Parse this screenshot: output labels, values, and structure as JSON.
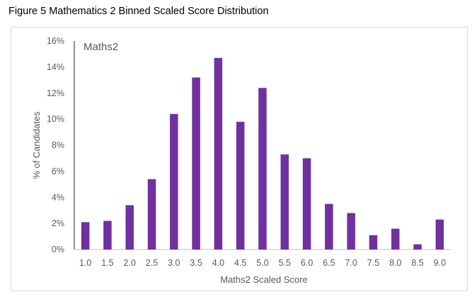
{
  "figure": {
    "title": "Figure 5 Mathematics 2 Binned Scaled Score Distribution"
  },
  "chart_data": {
    "type": "bar",
    "title": "Maths2",
    "xlabel": "Maths2 Scaled Score",
    "ylabel": "% of Candidates",
    "categories": [
      "1.0",
      "1.5",
      "2.0",
      "2.5",
      "3.0",
      "3.5",
      "4.0",
      "4.5",
      "5.0",
      "5.5",
      "6.0",
      "6.5",
      "7.0",
      "7.5",
      "8.0",
      "8.5",
      "9.0"
    ],
    "values": [
      2.1,
      2.2,
      3.4,
      5.4,
      10.4,
      13.2,
      14.7,
      9.8,
      12.4,
      7.3,
      7.0,
      3.5,
      2.8,
      1.1,
      1.6,
      0.4,
      2.3
    ],
    "ylim": [
      0,
      16
    ],
    "yticks": [
      "0%",
      "2%",
      "4%",
      "6%",
      "8%",
      "10%",
      "12%",
      "14%",
      "16%"
    ],
    "ytick_values": [
      0,
      2,
      4,
      6,
      8,
      10,
      12,
      14,
      16
    ],
    "grid": false,
    "legend": "none",
    "bar_color": "#7030a0"
  }
}
